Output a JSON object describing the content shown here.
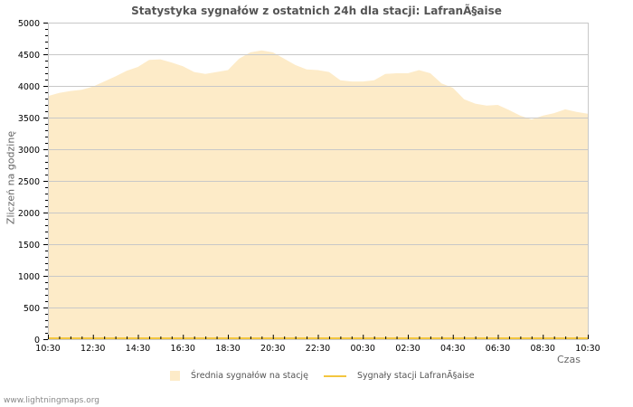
{
  "title": "Statystyka sygnałów z ostatnich 24h dla stacji: LafranÃ§aise",
  "footer": "www.lightningmaps.org",
  "colors": {
    "area_fill": "#fdebc8",
    "station_line": "#f3c63f",
    "grid": "#c8c8c8",
    "axis": "#c8c8c8"
  },
  "legend": {
    "items": [
      {
        "label": "Średnia sygnałów na stację",
        "type": "area"
      },
      {
        "label": "Sygnały stacji LafranÃ§aise",
        "type": "line"
      }
    ]
  },
  "chart_data": {
    "type": "area",
    "title": "Statystyka sygnałów z ostatnich 24h dla stacji: LafranÃ§aise",
    "xlabel": "Czas",
    "ylabel": "Zliczeń na godzinę",
    "ylim": [
      0,
      5000
    ],
    "yticks": [
      0,
      500,
      1000,
      1500,
      2000,
      2500,
      3000,
      3500,
      4000,
      4500,
      5000
    ],
    "xtick_labels": [
      "10:30",
      "12:30",
      "14:30",
      "16:30",
      "18:30",
      "20:30",
      "22:30",
      "00:30",
      "02:30",
      "04:30",
      "06:30",
      "08:30",
      "10:30"
    ],
    "grid": true,
    "legend_position": "bottom",
    "x": [
      "10:30",
      "11:00",
      "11:30",
      "12:00",
      "12:30",
      "13:00",
      "13:30",
      "14:00",
      "14:30",
      "15:00",
      "15:30",
      "16:00",
      "16:30",
      "17:00",
      "17:30",
      "18:00",
      "18:30",
      "19:00",
      "19:30",
      "20:00",
      "20:30",
      "21:00",
      "21:30",
      "22:00",
      "22:30",
      "23:00",
      "23:30",
      "00:00",
      "00:30",
      "01:00",
      "01:30",
      "02:00",
      "02:30",
      "03:00",
      "03:30",
      "04:00",
      "04:30",
      "05:00",
      "05:30",
      "06:00",
      "06:30",
      "07:00",
      "07:30",
      "08:00",
      "08:30",
      "09:00",
      "09:30",
      "10:00",
      "10:30"
    ],
    "series": [
      {
        "name": "Średnia sygnałów na stację",
        "type": "area",
        "values": [
          3840,
          3890,
          3920,
          3940,
          3990,
          4070,
          4150,
          4240,
          4300,
          4410,
          4420,
          4370,
          4310,
          4220,
          4190,
          4220,
          4250,
          4430,
          4530,
          4560,
          4530,
          4430,
          4330,
          4260,
          4250,
          4220,
          4090,
          4070,
          4070,
          4090,
          4190,
          4200,
          4200,
          4250,
          4200,
          4040,
          3970,
          3790,
          3720,
          3690,
          3700,
          3620,
          3530,
          3470,
          3530,
          3570,
          3630,
          3590,
          3560
        ]
      },
      {
        "name": "Sygnały stacji LafranÃ§aise",
        "type": "line",
        "values": [
          0,
          0,
          0,
          0,
          0,
          0,
          0,
          0,
          0,
          0,
          0,
          0,
          0,
          0,
          0,
          0,
          0,
          0,
          0,
          0,
          0,
          0,
          0,
          0,
          0,
          0,
          0,
          0,
          0,
          0,
          0,
          0,
          0,
          0,
          0,
          0,
          0,
          0,
          0,
          0,
          0,
          0,
          0,
          0,
          0,
          0,
          0,
          0,
          0
        ]
      }
    ]
  }
}
